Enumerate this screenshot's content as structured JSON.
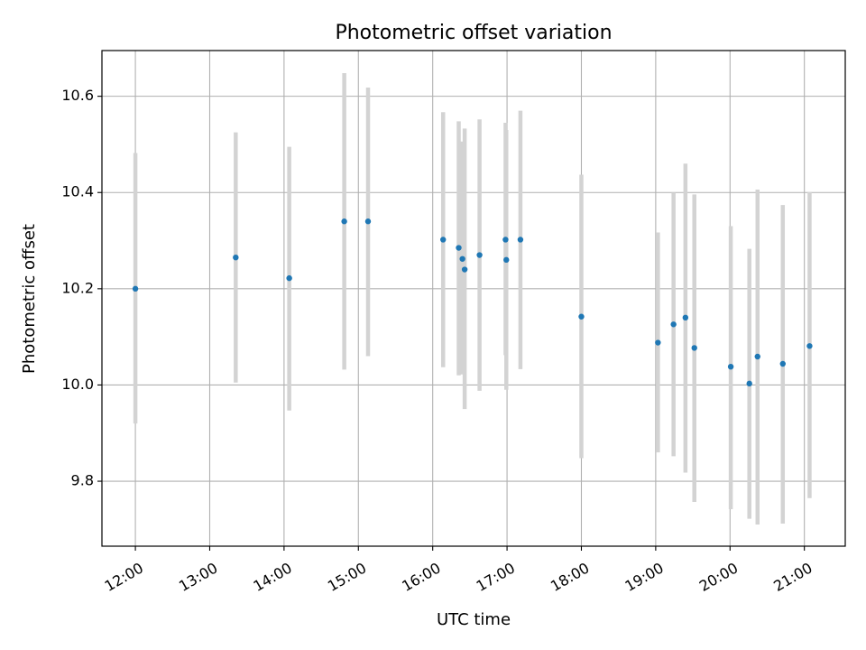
{
  "chart_data": {
    "type": "scatter",
    "title": "Photometric offset variation",
    "xlabel": "UTC time",
    "ylabel": "Photometric offset",
    "x_unit": "hour",
    "xlim": [
      11.55,
      21.55
    ],
    "ylim": [
      9.665,
      10.695
    ],
    "x_ticks": [
      {
        "value": 12,
        "label": "12:00"
      },
      {
        "value": 13,
        "label": "13:00"
      },
      {
        "value": 14,
        "label": "14:00"
      },
      {
        "value": 15,
        "label": "15:00"
      },
      {
        "value": 16,
        "label": "16:00"
      },
      {
        "value": 17,
        "label": "17:00"
      },
      {
        "value": 18,
        "label": "18:00"
      },
      {
        "value": 19,
        "label": "19:00"
      },
      {
        "value": 20,
        "label": "20:00"
      },
      {
        "value": 21,
        "label": "21:00"
      }
    ],
    "y_ticks": [
      {
        "value": 9.8,
        "label": "9.8"
      },
      {
        "value": 10.0,
        "label": "10.0"
      },
      {
        "value": 10.2,
        "label": "10.2"
      },
      {
        "value": 10.4,
        "label": "10.4"
      },
      {
        "value": 10.6,
        "label": "10.6"
      }
    ],
    "grid": true,
    "colors": {
      "point": "#1f77b4",
      "errorbar": "#d3d3d3",
      "grid": "#b0b0b0"
    },
    "points": [
      {
        "x": 12.0,
        "y": 10.2,
        "yerr_low": 9.92,
        "yerr_high": 10.482
      },
      {
        "x": 13.35,
        "y": 10.265,
        "yerr_low": 10.005,
        "yerr_high": 10.525
      },
      {
        "x": 14.07,
        "y": 10.222,
        "yerr_low": 9.947,
        "yerr_high": 10.495
      },
      {
        "x": 14.81,
        "y": 10.34,
        "yerr_low": 10.032,
        "yerr_high": 10.648
      },
      {
        "x": 15.13,
        "y": 10.34,
        "yerr_low": 10.06,
        "yerr_high": 10.618
      },
      {
        "x": 16.14,
        "y": 10.302,
        "yerr_low": 10.037,
        "yerr_high": 10.567
      },
      {
        "x": 16.35,
        "y": 10.285,
        "yerr_low": 10.02,
        "yerr_high": 10.548
      },
      {
        "x": 16.4,
        "y": 10.262,
        "yerr_low": 10.022,
        "yerr_high": 10.506
      },
      {
        "x": 16.43,
        "y": 10.24,
        "yerr_low": 9.95,
        "yerr_high": 10.533
      },
      {
        "x": 16.63,
        "y": 10.27,
        "yerr_low": 9.988,
        "yerr_high": 10.552
      },
      {
        "x": 16.98,
        "y": 10.302,
        "yerr_low": 10.062,
        "yerr_high": 10.545
      },
      {
        "x": 16.99,
        "y": 10.26,
        "yerr_low": 9.99,
        "yerr_high": 10.53
      },
      {
        "x": 17.18,
        "y": 10.302,
        "yerr_low": 10.033,
        "yerr_high": 10.57
      },
      {
        "x": 18.0,
        "y": 10.142,
        "yerr_low": 9.848,
        "yerr_high": 10.437
      },
      {
        "x": 19.03,
        "y": 10.088,
        "yerr_low": 9.86,
        "yerr_high": 10.317
      },
      {
        "x": 19.24,
        "y": 10.126,
        "yerr_low": 9.852,
        "yerr_high": 10.4
      },
      {
        "x": 19.4,
        "y": 10.14,
        "yerr_low": 9.818,
        "yerr_high": 10.46
      },
      {
        "x": 19.52,
        "y": 10.077,
        "yerr_low": 9.757,
        "yerr_high": 10.396
      },
      {
        "x": 20.01,
        "y": 10.038,
        "yerr_low": 9.742,
        "yerr_high": 10.33
      },
      {
        "x": 20.26,
        "y": 10.003,
        "yerr_low": 9.722,
        "yerr_high": 10.283
      },
      {
        "x": 20.37,
        "y": 10.059,
        "yerr_low": 9.71,
        "yerr_high": 10.406
      },
      {
        "x": 20.71,
        "y": 10.044,
        "yerr_low": 9.712,
        "yerr_high": 10.374
      },
      {
        "x": 21.07,
        "y": 10.081,
        "yerr_low": 9.765,
        "yerr_high": 10.401
      }
    ]
  }
}
